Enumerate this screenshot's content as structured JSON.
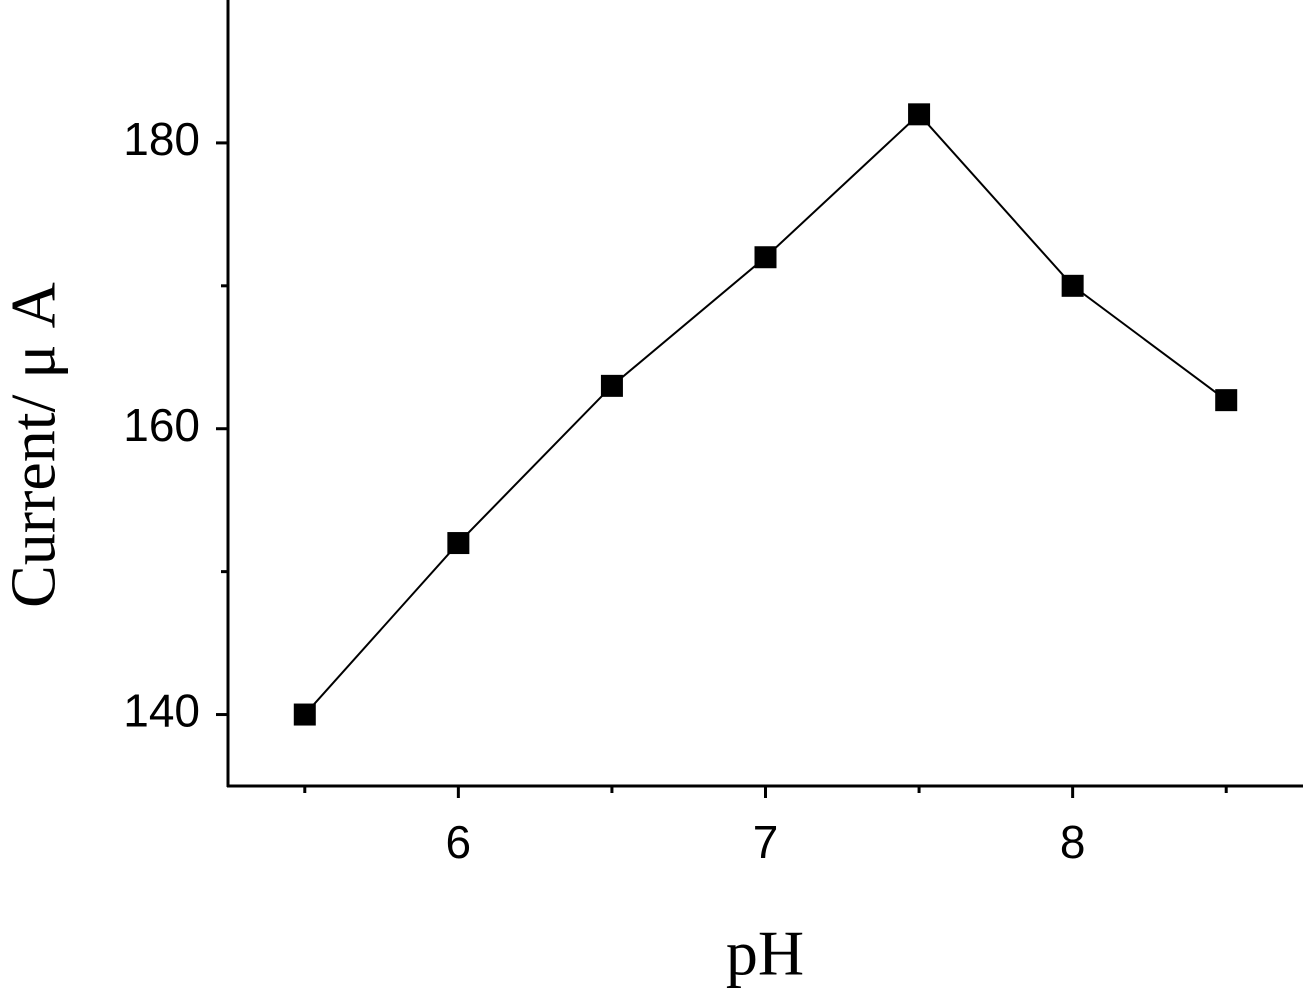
{
  "chart_data": {
    "type": "line",
    "x_label": "pH",
    "y_label": "Current/ μ A",
    "x": [
      5.5,
      6,
      6.5,
      7,
      7.5,
      8,
      8.5
    ],
    "series": [
      {
        "color": "#000000",
        "values": [
          140,
          152,
          163,
          172,
          182,
          170,
          162
        ]
      }
    ],
    "xlim": [
      5.25,
      8.75
    ],
    "xticks": [
      6,
      7,
      8
    ],
    "xticks_minor": [
      5.5,
      6.5,
      7.5,
      8.5
    ],
    "ylim": [
      135,
      190
    ],
    "yticks": [
      140,
      160,
      180
    ],
    "yticks_minor": [
      150,
      170
    ],
    "marker": "square",
    "grid": false
  }
}
